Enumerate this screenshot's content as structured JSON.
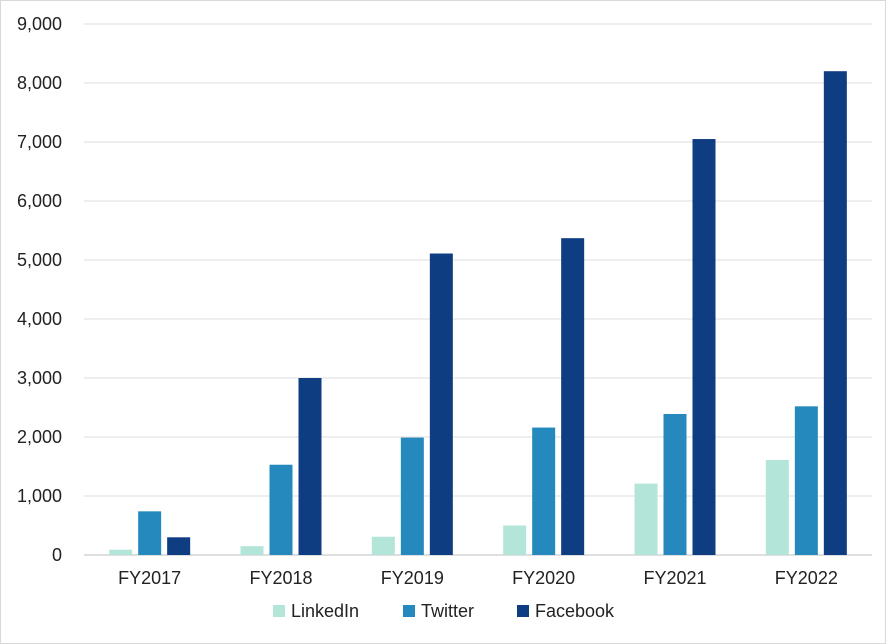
{
  "chart_data": {
    "type": "bar",
    "categories": [
      "FY2017",
      "FY2018",
      "FY2019",
      "FY2020",
      "FY2021",
      "FY2022"
    ],
    "series": [
      {
        "name": "LinkedIn",
        "color": "#b3e6d8",
        "values": [
          90,
          150,
          310,
          500,
          1210,
          1610
        ]
      },
      {
        "name": "Twitter",
        "color": "#2589bd",
        "values": [
          740,
          1530,
          1990,
          2160,
          2390,
          2520
        ]
      },
      {
        "name": "Facebook",
        "color": "#0f3d82",
        "values": [
          300,
          3000,
          5110,
          5370,
          7050,
          8200
        ]
      }
    ],
    "ylim": [
      0,
      9000
    ],
    "yticks": [
      0,
      1000,
      2000,
      3000,
      4000,
      5000,
      6000,
      7000,
      8000,
      9000
    ],
    "ytick_labels": [
      "0",
      "1,000",
      "2,000",
      "3,000",
      "4,000",
      "5,000",
      "6,000",
      "7,000",
      "8,000",
      "9,000"
    ],
    "grid": true,
    "legend_position": "bottom"
  }
}
